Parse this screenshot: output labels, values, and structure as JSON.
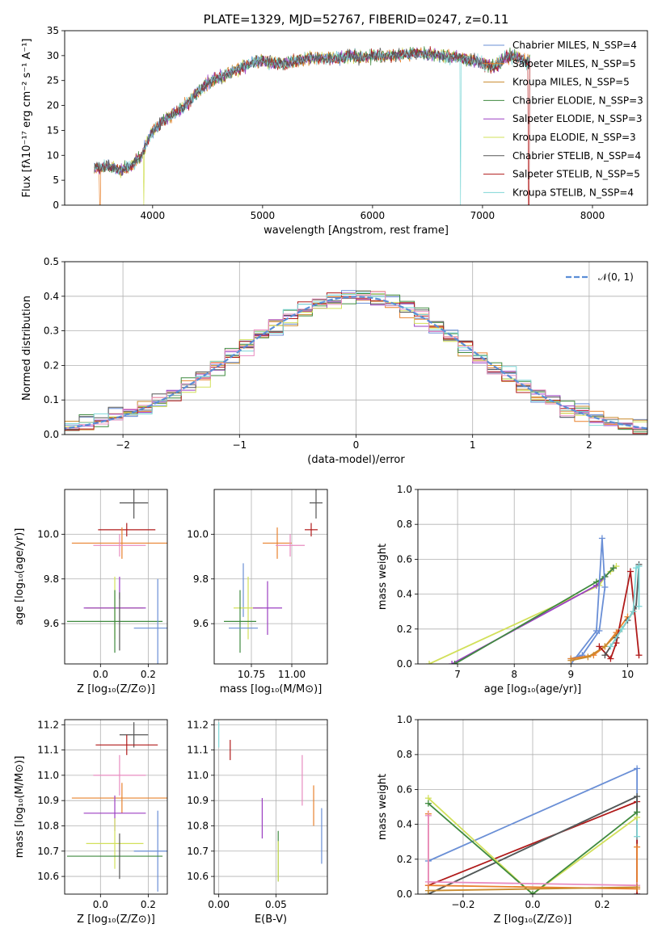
{
  "colors": {
    "chabrier_miles": "#6a8fd6",
    "salpeter_miles": "#e8822e",
    "kroupa_miles": "#c98a2c",
    "chabrier_elodie": "#3f8a3f",
    "salpeter_elodie": "#9b3fc2",
    "kroupa_elodie": "#d2e05a",
    "chabrier_stelib": "#555555",
    "salpeter_stelib": "#b01a1a",
    "kroupa_stelib": "#7fd7d7",
    "pink": "#e88cc0",
    "normal": "#5b8ed6"
  },
  "chart_data": [
    {
      "id": "spectrum",
      "type": "line",
      "title": "PLATE=1329, MJD=52767, FIBERID=0247, z=0.11",
      "xlabel": "wavelength [Angstrom, rest frame]",
      "ylabel": "Flux [fλ10⁻¹⁷ erg cm⁻² s⁻¹ A⁻¹]",
      "xlim": [
        3200,
        8500
      ],
      "ylim": [
        0,
        35
      ],
      "xticks": [
        4000,
        5000,
        6000,
        7000,
        8000
      ],
      "yticks": [
        0,
        5,
        10,
        15,
        20,
        25,
        30,
        35
      ],
      "grid": false,
      "legend_position": "top-right",
      "legend": [
        "Chabrier MILES, N_SSP=4",
        "Salpeter MILES, N_SSP=5",
        "Kroupa MILES, N_SSP=5",
        "Chabrier ELODIE, N_SSP=3",
        "Salpeter ELODIE, N_SSP=3",
        "Kroupa ELODIE, N_SSP=3",
        "Chabrier STELIB, N_SSP=4",
        "Salpeter STELIB, N_SSP=5",
        "Kroupa STELIB, N_SSP=4"
      ],
      "continuum": [
        [
          3470,
          7.5
        ],
        [
          3600,
          7.8
        ],
        [
          3700,
          7.0
        ],
        [
          3800,
          7.8
        ],
        [
          3900,
          10
        ],
        [
          3950,
          12.5
        ],
        [
          4000,
          15
        ],
        [
          4100,
          17
        ],
        [
          4200,
          18.5
        ],
        [
          4300,
          20
        ],
        [
          4400,
          22.5
        ],
        [
          4500,
          24.5
        ],
        [
          4600,
          25.5
        ],
        [
          4700,
          26.5
        ],
        [
          4800,
          27.5
        ],
        [
          4900,
          28.5
        ],
        [
          5000,
          29
        ],
        [
          5100,
          28.5
        ],
        [
          5200,
          28.5
        ],
        [
          5300,
          29
        ],
        [
          5400,
          29.5
        ],
        [
          5500,
          29.5
        ],
        [
          5600,
          29.5
        ],
        [
          5700,
          29.5
        ],
        [
          5800,
          30
        ],
        [
          5900,
          29.5
        ],
        [
          6000,
          30
        ],
        [
          6200,
          30
        ],
        [
          6400,
          30.5
        ],
        [
          6600,
          30
        ],
        [
          6800,
          29.5
        ],
        [
          7000,
          28.5
        ],
        [
          7100,
          27.5
        ],
        [
          7200,
          29.5
        ],
        [
          7300,
          30
        ],
        [
          7400,
          28.5
        ],
        [
          7430,
          29
        ]
      ]
    },
    {
      "id": "residuals",
      "type": "histogram",
      "xlabel": "(data-model)/error",
      "ylabel": "Normed distribution",
      "xlim": [
        -2.5,
        2.5
      ],
      "ylim": [
        0,
        0.5
      ],
      "xticks": [
        -2,
        -1,
        0,
        1,
        2
      ],
      "yticks": [
        0.0,
        0.1,
        0.2,
        0.3,
        0.4,
        0.5
      ],
      "grid": true,
      "legend_position": "top-right",
      "legend": [
        "𝒩(0, 1)"
      ],
      "bin_width": 0.125
    },
    {
      "id": "age_vs_Z",
      "type": "errorbar",
      "xlabel": "Z [log₁₀(Z/Z⊙)]",
      "ylabel": "age  [log₁₀(age/yr)]",
      "xlim": [
        -0.15,
        0.28
      ],
      "ylim": [
        9.42,
        10.2
      ],
      "xticks": [
        0.0,
        0.2
      ],
      "yticks": [
        9.6,
        9.8,
        10.0
      ],
      "grid": true,
      "points": [
        {
          "c": "chabrier_stelib",
          "x": 0.14,
          "xe": 0.06,
          "y": 10.14,
          "ye": 0.07
        },
        {
          "c": "salpeter_stelib",
          "x": 0.11,
          "xe": 0.12,
          "y": 10.02,
          "ye": 0.03
        },
        {
          "c": "salpeter_miles",
          "x": 0.09,
          "xe": 0.21,
          "y": 9.96,
          "ye": 0.07
        },
        {
          "c": "pink",
          "x": 0.08,
          "xe": 0.11,
          "y": 9.95,
          "ye": 0.05
        },
        {
          "c": "salpeter_elodie",
          "x": 0.08,
          "xe": 0.0,
          "y": 9.76,
          "ye": 0.05
        },
        {
          "c": "kroupa_elodie",
          "x": 0.06,
          "xe": 0.12,
          "y": 9.67,
          "ye": 0.14
        },
        {
          "c": "salpeter_elodie",
          "x": 0.06,
          "xe": 0.13,
          "y": 9.67,
          "ye": 0.0
        },
        {
          "c": "chabrier_elodie",
          "x": 0.06,
          "xe": 0.2,
          "y": 9.61,
          "ye": 0.14
        },
        {
          "c": "chabrier_stelib",
          "x": 0.08,
          "xe": 0.0,
          "y": 9.61,
          "ye": 0.13
        },
        {
          "c": "chabrier_miles",
          "x": 0.24,
          "xe": 0.1,
          "y": 9.58,
          "ye": 0.22
        }
      ]
    },
    {
      "id": "age_vs_mass",
      "type": "errorbar",
      "xlabel": "mass [log₁₀(M/M⊙)]",
      "ylabel": "",
      "xlim": [
        10.52,
        11.22
      ],
      "ylim": [
        9.42,
        10.2
      ],
      "xticks": [
        10.75,
        11.0
      ],
      "yticks": [
        9.6,
        9.8,
        10.0
      ],
      "grid": true,
      "points": [
        {
          "c": "chabrier_stelib",
          "x": 11.15,
          "xe": 0.04,
          "y": 10.14,
          "ye": 0.07
        },
        {
          "c": "salpeter_stelib",
          "x": 11.12,
          "xe": 0.04,
          "y": 10.02,
          "ye": 0.03
        },
        {
          "c": "salpeter_miles",
          "x": 10.91,
          "xe": 0.09,
          "y": 9.96,
          "ye": 0.07
        },
        {
          "c": "pink",
          "x": 10.99,
          "xe": 0.09,
          "y": 9.95,
          "ye": 0.05
        },
        {
          "c": "chabrier_miles",
          "x": 10.7,
          "xe": 0.0,
          "y": 9.75,
          "ye": 0.12
        },
        {
          "c": "kroupa_elodie",
          "x": 10.73,
          "xe": 0.09,
          "y": 9.67,
          "ye": 0.14
        },
        {
          "c": "salpeter_elodie",
          "x": 10.85,
          "xe": 0.09,
          "y": 9.67,
          "ye": 0.12
        },
        {
          "c": "chabrier_elodie",
          "x": 10.68,
          "xe": 0.1,
          "y": 9.61,
          "ye": 0.14
        },
        {
          "c": "chabrier_miles",
          "x": 10.7,
          "xe": 0.09,
          "y": 9.58,
          "ye": 0.0
        }
      ]
    },
    {
      "id": "weight_vs_age",
      "type": "line",
      "xlabel": "age  [log₁₀(age/yr)]",
      "ylabel": "mass weight",
      "xlim": [
        6.3,
        10.35
      ],
      "ylim": [
        0,
        1
      ],
      "xticks": [
        7,
        8,
        9,
        10
      ],
      "yticks": [
        0.0,
        0.2,
        0.4,
        0.6,
        0.8,
        1.0
      ],
      "grid": true,
      "series": [
        {
          "c": "kroupa_elodie",
          "x": [
            6.5,
            9.5,
            9.6,
            9.7,
            9.8
          ],
          "y": [
            0.0,
            0.45,
            0.5,
            0.53,
            0.56
          ]
        },
        {
          "c": "salpeter_elodie",
          "x": [
            6.9,
            9.45,
            9.6,
            9.75
          ],
          "y": [
            0.0,
            0.45,
            0.5,
            0.55
          ]
        },
        {
          "c": "chabrier_elodie",
          "x": [
            6.95,
            9.45,
            9.6,
            9.75
          ],
          "y": [
            0.0,
            0.47,
            0.5,
            0.55
          ]
        },
        {
          "c": "chabrier_miles",
          "x": [
            9.0,
            9.45,
            9.55,
            9.6,
            9.5,
            9.2,
            9.0
          ],
          "y": [
            0.0,
            0.19,
            0.72,
            0.44,
            0.19,
            0.05,
            0.03
          ]
        },
        {
          "c": "salpeter_miles",
          "x": [
            9.0,
            9.4,
            9.6,
            9.8,
            10.0
          ],
          "y": [
            0.03,
            0.05,
            0.1,
            0.18,
            0.27
          ]
        },
        {
          "c": "kroupa_miles",
          "x": [
            9.0,
            9.3,
            9.6,
            9.9,
            10.1
          ],
          "y": [
            0.02,
            0.04,
            0.1,
            0.2,
            0.3
          ]
        },
        {
          "c": "salpeter_stelib",
          "x": [
            9.5,
            9.7,
            9.8,
            10.05,
            10.2
          ],
          "y": [
            0.1,
            0.03,
            0.12,
            0.53,
            0.05
          ]
        },
        {
          "c": "chabrier_stelib",
          "x": [
            9.6,
            9.8,
            10.0,
            10.15,
            10.2
          ],
          "y": [
            0.05,
            0.15,
            0.25,
            0.33,
            0.57
          ]
        },
        {
          "c": "kroupa_stelib",
          "x": [
            9.7,
            9.9,
            10.1,
            10.15,
            10.2,
            10.2
          ],
          "y": [
            0.1,
            0.2,
            0.3,
            0.55,
            0.56,
            0.33
          ]
        }
      ]
    },
    {
      "id": "mass_vs_Z",
      "type": "errorbar",
      "xlabel": "Z [log₁₀(Z/Z⊙)]",
      "ylabel": "mass [log₁₀(M/M⊙)]",
      "xlim": [
        -0.15,
        0.28
      ],
      "ylim": [
        10.53,
        11.22
      ],
      "xticks": [
        0.0,
        0.2
      ],
      "yticks": [
        10.6,
        10.7,
        10.8,
        10.9,
        11.0,
        11.1,
        11.2
      ],
      "grid": true,
      "points": [
        {
          "c": "chabrier_stelib",
          "x": 0.14,
          "xe": 0.06,
          "y": 11.16,
          "ye": 0.05
        },
        {
          "c": "salpeter_stelib",
          "x": 0.11,
          "xe": 0.13,
          "y": 11.12,
          "ye": 0.04
        },
        {
          "c": "pink",
          "x": 0.08,
          "xe": 0.11,
          "y": 11.0,
          "ye": 0.08
        },
        {
          "c": "salpeter_miles",
          "x": 0.09,
          "xe": 0.21,
          "y": 10.91,
          "ye": 0.06
        },
        {
          "c": "salpeter_elodie",
          "x": 0.06,
          "xe": 0.13,
          "y": 10.85,
          "ye": 0.07
        },
        {
          "c": "kroupa_elodie",
          "x": 0.06,
          "xe": 0.12,
          "y": 10.73,
          "ye": 0.1
        },
        {
          "c": "chabrier_miles",
          "x": 0.24,
          "xe": 0.1,
          "y": 10.7,
          "ye": 0.16
        },
        {
          "c": "chabrier_elodie",
          "x": 0.06,
          "xe": 0.2,
          "y": 10.68,
          "ye": 0.0
        },
        {
          "c": "chabrier_stelib",
          "x": 0.08,
          "xe": 0.0,
          "y": 10.68,
          "ye": 0.09
        }
      ]
    },
    {
      "id": "mass_vs_ebv",
      "type": "errorbar",
      "xlabel": "E(B-V)",
      "ylabel": "",
      "xlim": [
        -0.004,
        0.095
      ],
      "ylim": [
        10.53,
        11.22
      ],
      "xticks": [
        0.0,
        0.05
      ],
      "yticks": [
        10.6,
        10.7,
        10.8,
        10.9,
        11.0,
        11.1,
        11.2
      ],
      "grid": true,
      "points": [
        {
          "c": "kroupa_stelib",
          "x": 0.0,
          "xe": 0.0,
          "y": 11.16,
          "ye": 0.05
        },
        {
          "c": "salpeter_stelib",
          "x": 0.01,
          "xe": 0.0,
          "y": 11.1,
          "ye": 0.04
        },
        {
          "c": "pink",
          "x": 0.073,
          "xe": 0.0,
          "y": 10.98,
          "ye": 0.1
        },
        {
          "c": "salpeter_miles",
          "x": 0.083,
          "xe": 0.0,
          "y": 10.88,
          "ye": 0.08
        },
        {
          "c": "salpeter_elodie",
          "x": 0.038,
          "xe": 0.0,
          "y": 10.83,
          "ye": 0.08
        },
        {
          "c": "chabrier_miles",
          "x": 0.09,
          "xe": 0.0,
          "y": 10.76,
          "ye": 0.11
        },
        {
          "c": "chabrier_elodie",
          "x": 0.052,
          "xe": 0.0,
          "y": 10.68,
          "ye": 0.1
        },
        {
          "c": "kroupa_elodie",
          "x": 0.052,
          "xe": 0.0,
          "y": 10.66,
          "ye": 0.08
        }
      ]
    },
    {
      "id": "weight_vs_Z",
      "type": "line",
      "xlabel": "Z [log₁₀(Z/Z⊙)]",
      "ylabel": "mass weight",
      "xlim": [
        -0.33,
        0.33
      ],
      "ylim": [
        0,
        1
      ],
      "xticks": [
        -0.2,
        0.0,
        0.2
      ],
      "yticks": [
        0.0,
        0.2,
        0.4,
        0.6,
        0.8,
        1.0
      ],
      "grid": true,
      "series": [
        {
          "c": "chabrier_miles",
          "x": [
            -0.3,
            0.3,
            0.3
          ],
          "y": [
            0.19,
            0.72,
            0.0
          ]
        },
        {
          "c": "salpeter_stelib",
          "x": [
            -0.3,
            0.3,
            0.3
          ],
          "y": [
            0.05,
            0.53,
            0.0
          ]
        },
        {
          "c": "kroupa_stelib",
          "x": [
            -0.3,
            0.3,
            0.3
          ],
          "y": [
            0.0,
            0.56,
            0.33
          ]
        },
        {
          "c": "chabrier_stelib",
          "x": [
            -0.3,
            0.3,
            0.3
          ],
          "y": [
            0.0,
            0.56,
            0.47
          ]
        },
        {
          "c": "kroupa_elodie",
          "x": [
            -0.3,
            0.0,
            0.3
          ],
          "y": [
            0.55,
            0.0,
            0.44
          ]
        },
        {
          "c": "chabrier_elodie",
          "x": [
            -0.3,
            0.0,
            0.3
          ],
          "y": [
            0.52,
            0.0,
            0.47
          ]
        },
        {
          "c": "salpeter_miles",
          "x": [
            -0.3,
            -0.3,
            0.3,
            0.3
          ],
          "y": [
            0.46,
            0.05,
            0.03,
            0.27
          ]
        },
        {
          "c": "pink",
          "x": [
            -0.3,
            -0.3,
            0.3
          ],
          "y": [
            0.45,
            0.07,
            0.05
          ]
        },
        {
          "c": "kroupa_miles",
          "x": [
            -0.3,
            0.3
          ],
          "y": [
            0.02,
            0.04
          ]
        }
      ]
    }
  ]
}
